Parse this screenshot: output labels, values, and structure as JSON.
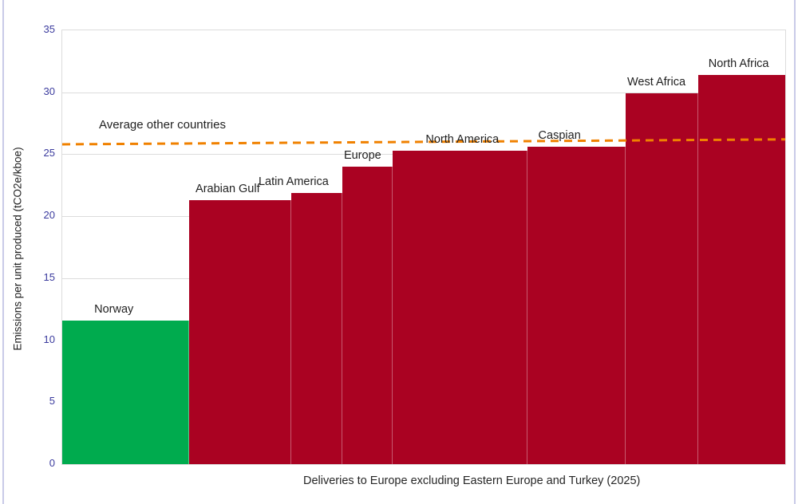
{
  "chart_data": {
    "type": "bar",
    "variant": "variable-width-marimekko",
    "title": "",
    "xlabel": "Deliveries to Europe excluding Eastern Europe and Turkey (2025)",
    "ylabel": "Emissions per unit produced (tCO2e/kboe)",
    "ylim": [
      0,
      35
    ],
    "yticks": [
      0,
      5,
      10,
      15,
      20,
      25,
      30,
      35
    ],
    "grid": true,
    "legend": "none",
    "bars": [
      {
        "label": "Norway",
        "value": 11.6,
        "width_share": 0.176,
        "color": "#00AB4E"
      },
      {
        "label": "Arabian Gulf",
        "value": 21.3,
        "width_share": 0.141,
        "color": "#AA0222"
      },
      {
        "label": "Latin America",
        "value": 21.9,
        "width_share": 0.07,
        "color": "#AA0222"
      },
      {
        "label": "Europe",
        "value": 24.0,
        "width_share": 0.07,
        "color": "#AA0222"
      },
      {
        "label": "North America",
        "value": 25.3,
        "width_share": 0.186,
        "color": "#AA0222"
      },
      {
        "label": "Caspian",
        "value": 25.6,
        "width_share": 0.136,
        "color": "#AA0222"
      },
      {
        "label": "West Africa",
        "value": 29.9,
        "width_share": 0.101,
        "color": "#AA0222"
      },
      {
        "label": "North Africa",
        "value": 31.4,
        "width_share": 0.12,
        "color": "#AA0222"
      }
    ],
    "average_line": {
      "label": "Average other countries",
      "start_value": 25.8,
      "end_value": 26.2,
      "color": "#F08100",
      "style": "dashed"
    },
    "colors": {
      "highlight_bar": "#00AB4E",
      "default_bar": "#AA0222",
      "average_line": "#F08100",
      "tick_label": "#3B3B9E",
      "gridline": "#DCDCDC",
      "frame_edge": "#C9CBE8"
    }
  }
}
